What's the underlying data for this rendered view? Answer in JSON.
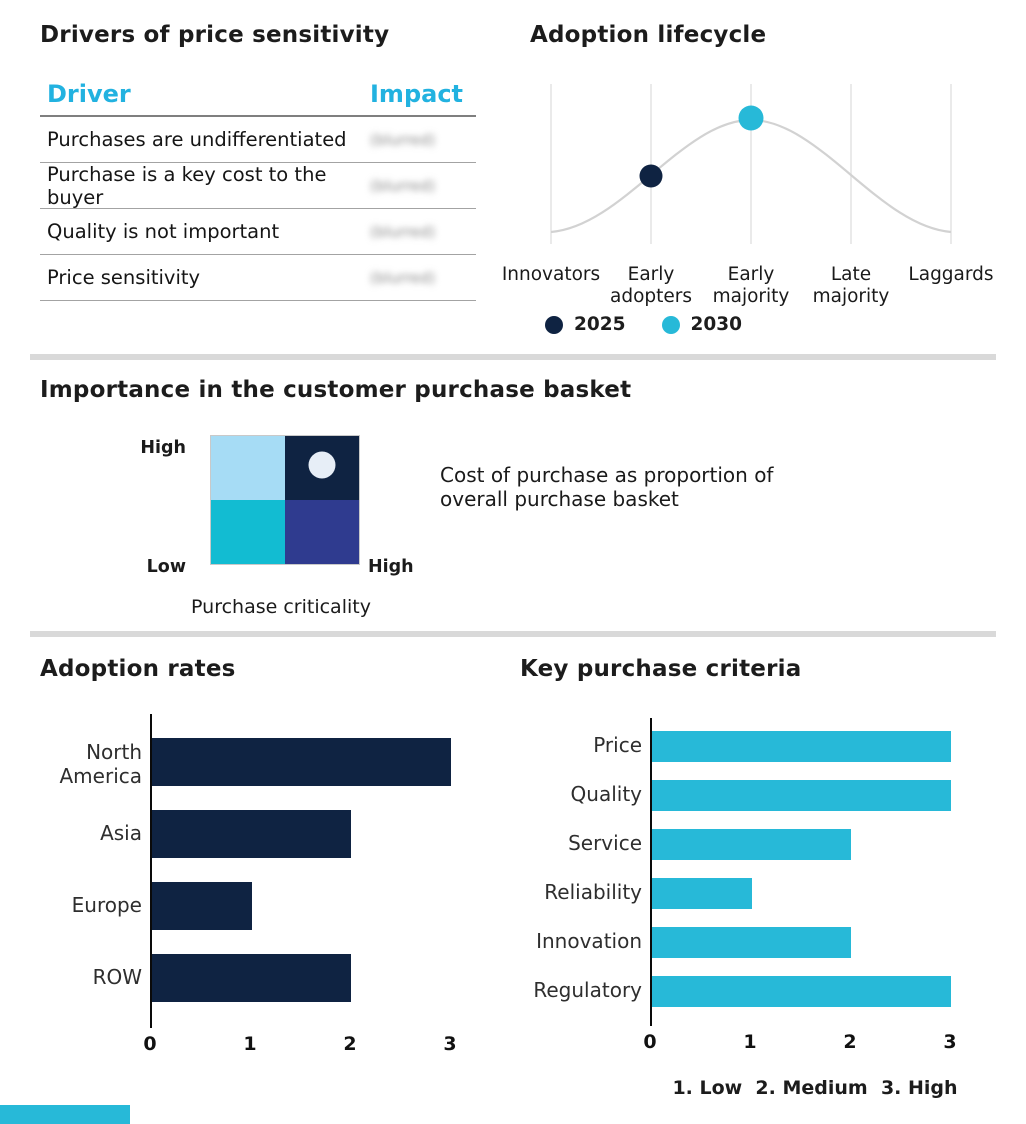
{
  "colors": {
    "navy": "#0f2342",
    "cyan": "#27b9d8",
    "cyan_header_text": "#22b2e0",
    "light_blue_quadrant": "#a6dcf5",
    "teal_quadrant": "#12bcd2",
    "indigo_quadrant": "#2f3b8f",
    "divider_gray": "#d9d9d9",
    "curve_gray": "#d2d2d2"
  },
  "chart_data": [
    {
      "type": "table",
      "title": "Drivers of price sensitivity",
      "columns": [
        "Driver",
        "Impact"
      ],
      "rows": [
        [
          "Purchases are undifferentiated",
          "(blurred)"
        ],
        [
          "Purchase is a key cost to the buyer",
          "(blurred)"
        ],
        [
          "Quality is not important",
          "(blurred)"
        ],
        [
          "Price sensitivity",
          "(blurred)"
        ]
      ]
    },
    {
      "type": "line",
      "title": "Adoption lifecycle",
      "categories": [
        "Innovators",
        "Early adopters",
        "Early majority",
        "Late majority",
        "Laggards"
      ],
      "curve_shape": "bell",
      "markers": [
        {
          "label": "2025",
          "category": "Early adopters",
          "color": "#0f2342"
        },
        {
          "label": "2030",
          "category": "Early majority",
          "color": "#27b9d8"
        }
      ],
      "legend": [
        "2025",
        "2030"
      ],
      "legend_position": "bottom",
      "grid": "vertical gridline at each category"
    },
    {
      "type": "matrix",
      "title": "Importance in the customer purchase basket",
      "y_axis": {
        "top": "High",
        "bottom": "Low"
      },
      "x_axis": {
        "right": "High",
        "label": "Purchase criticality"
      },
      "quadrants": [
        {
          "position": "top-left",
          "color": "#a6dcf5"
        },
        {
          "position": "top-right",
          "color": "#0f2342",
          "marker": "light-circle"
        },
        {
          "position": "bottom-left",
          "color": "#12bcd2"
        },
        {
          "position": "bottom-right",
          "color": "#2f3b8f"
        }
      ],
      "annotation": "Cost of purchase as proportion of overall purchase basket"
    },
    {
      "type": "bar",
      "title": "Adoption rates",
      "orientation": "horizontal",
      "categories": [
        "North America",
        "Asia",
        "Europe",
        "ROW"
      ],
      "values": [
        3,
        2,
        1,
        2
      ],
      "xlim": [
        0,
        3
      ],
      "xticks": [
        "0",
        "1",
        "2",
        "3"
      ],
      "bar_color": "#0f2342",
      "grid": false
    },
    {
      "type": "bar",
      "title": "Key purchase criteria",
      "orientation": "horizontal",
      "categories": [
        "Price",
        "Quality",
        "Service",
        "Reliability",
        "Innovation",
        "Regulatory"
      ],
      "values": [
        3,
        3,
        2,
        1,
        2,
        3
      ],
      "xlim": [
        0,
        3
      ],
      "xticks": [
        "0",
        "1",
        "2",
        "3"
      ],
      "bar_color": "#27b9d8",
      "note": "1. Low  2. Medium  3. High",
      "grid": false
    }
  ]
}
